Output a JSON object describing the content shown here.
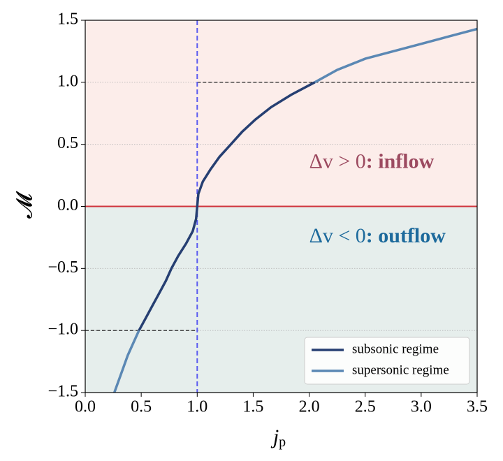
{
  "chart_data": {
    "type": "line",
    "xlabel": "j",
    "xlabel_sub": "p",
    "ylabel": "𝓜",
    "xlim": [
      0,
      3.5
    ],
    "ylim": [
      -1.5,
      1.5
    ],
    "xticks": [
      {
        "value": 0,
        "label": "0.0"
      },
      {
        "value": 0.5,
        "label": "0.5"
      },
      {
        "value": 1,
        "label": "1.0"
      },
      {
        "value": 1.5,
        "label": "1.5"
      },
      {
        "value": 2,
        "label": "2.0"
      },
      {
        "value": 2.5,
        "label": "2.5"
      },
      {
        "value": 3,
        "label": "3.0"
      },
      {
        "value": 3.5,
        "label": "3.5"
      }
    ],
    "yticks": [
      {
        "value": -1.5,
        "label": "−1.5"
      },
      {
        "value": -1,
        "label": "−1.0"
      },
      {
        "value": -0.5,
        "label": "−0.5"
      },
      {
        "value": 0,
        "label": "0.0"
      },
      {
        "value": 0.5,
        "label": "0.5"
      },
      {
        "value": 1,
        "label": "1.0"
      },
      {
        "value": 1.5,
        "label": "1.5"
      }
    ],
    "grid": true,
    "regions": [
      {
        "color": "#fcedea",
        "from": 0,
        "to": 1.5
      },
      {
        "color": "#e6eeec",
        "from": -1.5,
        "to": 0
      }
    ],
    "hline": {
      "y": 0,
      "color": "#d0343c"
    },
    "vline": {
      "x": 1,
      "color": "#5a5af0"
    },
    "dashed_segments": [
      {
        "y": 1,
        "x": [
          1,
          3.5
        ]
      },
      {
        "y": -1,
        "x": [
          0,
          1
        ]
      }
    ],
    "annotations": [
      {
        "math": "Δv > 0",
        "text": ": inflow",
        "color": "#9c4a60",
        "x": 2.0,
        "y": 0.35
      },
      {
        "math": "Δv < 0",
        "text": ": outflow",
        "color": "#1d6a9c",
        "x": 2.0,
        "y": -0.25
      }
    ],
    "legend": "lower right",
    "series": [
      {
        "name": "subsonic regime",
        "color": "#263f72",
        "x": [
          0.48,
          0.54,
          0.6,
          0.66,
          0.72,
          0.77,
          0.83,
          0.9,
          0.96,
          0.99,
          1.0,
          1.01,
          1.05,
          1.12,
          1.2,
          1.3,
          1.4,
          1.52,
          1.66,
          1.84,
          2.05
        ],
        "values": [
          -1,
          -0.9,
          -0.8,
          -0.7,
          -0.6,
          -0.5,
          -0.4,
          -0.3,
          -0.2,
          -0.1,
          0,
          0.1,
          0.2,
          0.3,
          0.4,
          0.5,
          0.6,
          0.7,
          0.8,
          0.9,
          1.0
        ]
      },
      {
        "name": "supersonic regime",
        "color": "#5b88b4",
        "x": [
          0.26,
          0.3,
          0.34,
          0.38,
          0.43,
          0.48,
          null,
          2.05,
          2.25,
          2.5,
          2.75,
          3.0,
          3.25,
          3.5
        ],
        "values": [
          -1.5,
          -1.4,
          -1.3,
          -1.2,
          -1.1,
          -1.0,
          null,
          1.0,
          1.1,
          1.19,
          1.25,
          1.31,
          1.37,
          1.43
        ]
      }
    ]
  }
}
